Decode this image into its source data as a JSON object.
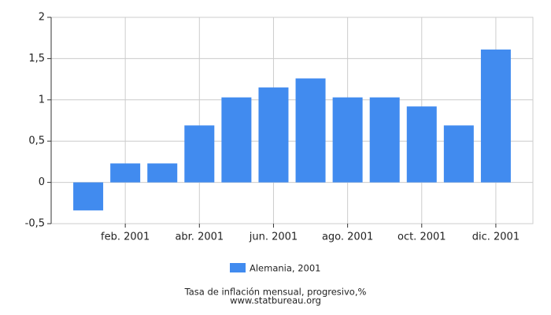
{
  "chart_data": {
    "type": "bar",
    "categories": [
      null,
      "feb. 2001",
      null,
      "abr. 2001",
      null,
      "jun. 2001",
      null,
      "ago. 2001",
      null,
      "oct. 2001",
      null,
      "dic. 2001"
    ],
    "series": [
      {
        "name": "Alemania, 2001",
        "color": "#418bef",
        "values": [
          -0.34,
          0.23,
          0.23,
          0.69,
          1.03,
          1.15,
          1.26,
          1.03,
          1.03,
          0.92,
          0.69,
          1.61
        ]
      }
    ],
    "ylim": [
      -0.5,
      2
    ],
    "yticks": [
      {
        "value": -0.5,
        "label": "-0,5"
      },
      0,
      {
        "value": 0.5,
        "label": "0,5"
      },
      1,
      {
        "value": 1.5,
        "label": "1,5"
      },
      2
    ],
    "grid": true,
    "xlabel": "Tasa de inflación mensual, progresivo,%",
    "source": "www.statbureau.org"
  }
}
